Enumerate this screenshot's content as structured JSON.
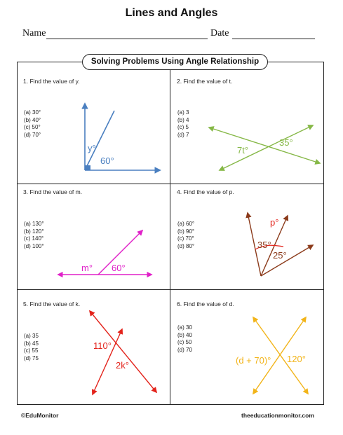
{
  "title": "Lines and Angles",
  "name_label": "Name",
  "date_label": "Date",
  "banner": "Solving Problems Using Angle Relationship",
  "problems": [
    {
      "prompt": "1.   Find the value of y.",
      "options": [
        "(a) 30°",
        "(b) 40°",
        "(c) 50°",
        "(d) 70°"
      ],
      "labels": [
        "y°",
        "60°"
      ],
      "color": "#4a7fc0"
    },
    {
      "prompt": "2.   Find the value of t.",
      "options": [
        "(a) 3",
        "(b) 4",
        "(c) 5",
        "(d) 7"
      ],
      "labels": [
        "7t°",
        "35°"
      ],
      "color": "#86b847"
    },
    {
      "prompt": "3.   Find the value of m.",
      "options": [
        "(a) 130°",
        "(b) 120°",
        "(c) 140°",
        "(d) 100°"
      ],
      "labels": [
        "m°",
        "60°"
      ],
      "color": "#e020c8"
    },
    {
      "prompt": "4.   Find the value of p.",
      "options": [
        "(a) 60°",
        "(b) 90°",
        "(c) 70°",
        "(d) 80°"
      ],
      "labels": [
        "p°",
        "35°",
        "25°"
      ],
      "color": "#8b3a1a",
      "arc_color": "#e3231b"
    },
    {
      "prompt": "5.   Find the value of k.",
      "options": [
        "(a) 35",
        "(b) 45",
        "(c) 55",
        "(d) 75"
      ],
      "labels": [
        "110°",
        "2k°"
      ],
      "color": "#e3231b"
    },
    {
      "prompt": "6.   Find the value of d.",
      "options": [
        "(a) 30",
        "(b) 40",
        "(c) 50",
        "(d) 70"
      ],
      "labels": [
        "(d + 70)°",
        "120°"
      ],
      "color": "#f2b419"
    }
  ],
  "footer_left": "©EduMonitor",
  "footer_right": "theeducationmonitor.com"
}
